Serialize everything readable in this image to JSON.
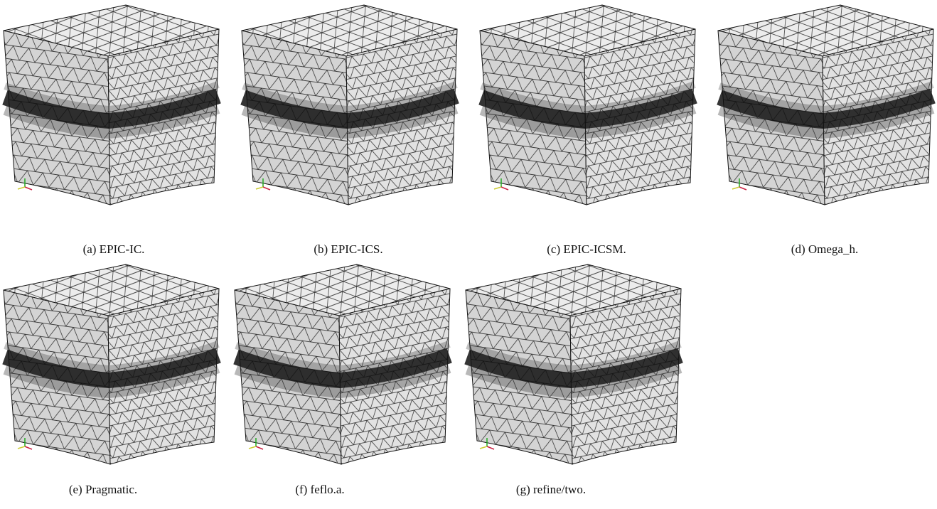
{
  "figure": {
    "subfigures": [
      {
        "caption": "(a) EPIC-IC."
      },
      {
        "caption": "(b) EPIC-ICS."
      },
      {
        "caption": "(c) EPIC-ICSM."
      },
      {
        "caption": "(d) Omega_h."
      },
      {
        "caption": "(e) Pragmatic."
      },
      {
        "caption": "(f) feflo.a."
      },
      {
        "caption": "(g) refine/two."
      }
    ]
  }
}
